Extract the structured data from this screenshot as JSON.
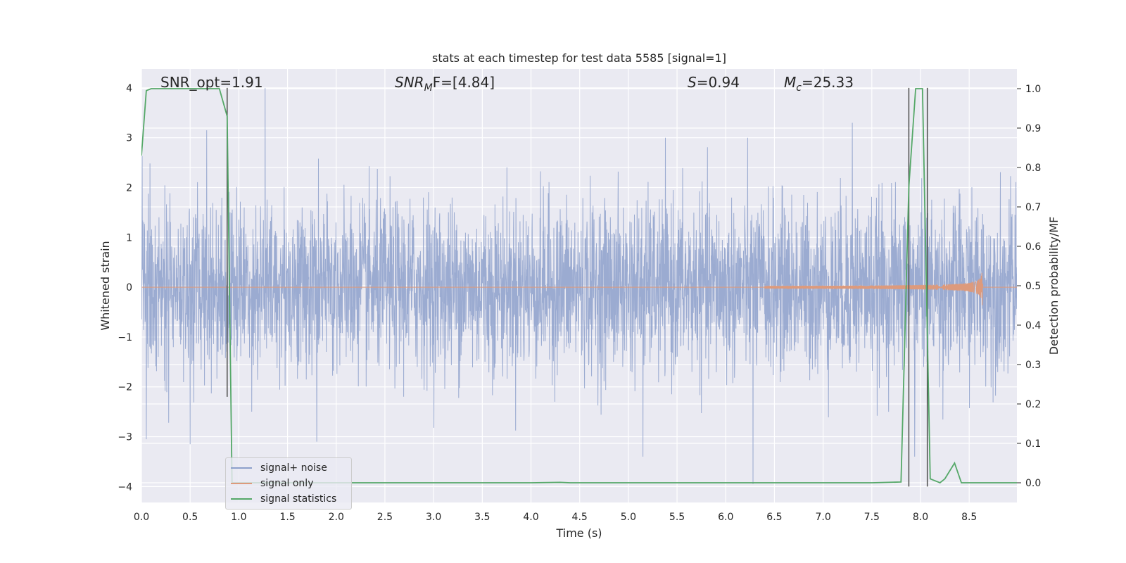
{
  "chart_data": {
    "type": "line",
    "title": "stats at each timestep for test data 5585 [signal=1]",
    "xlabel": "Time (s)",
    "ylabel_left": "Whitened strain",
    "ylabel_right": "Detection probability/MF",
    "xlim": [
      0.0,
      8.99
    ],
    "ylim_left": [
      -4.32,
      4.38
    ],
    "ylim_right": [
      -0.05,
      1.05
    ],
    "x_ticks": [
      0.0,
      0.5,
      1.0,
      1.5,
      2.0,
      2.5,
      3.0,
      3.5,
      4.0,
      4.5,
      5.0,
      5.5,
      6.0,
      6.5,
      7.0,
      7.5,
      8.0,
      8.5
    ],
    "x_tick_labels": [
      "0.0",
      "0.5",
      "1.0",
      "1.5",
      "2.0",
      "2.5",
      "3.0",
      "3.5",
      "4.0",
      "4.5",
      "5.0",
      "5.5",
      "6.0",
      "6.5",
      "7.0",
      "7.5",
      "8.0",
      "8.5"
    ],
    "y_left_ticks": [
      4,
      3,
      2,
      1,
      0,
      -1,
      -2,
      -3,
      -4
    ],
    "y_left_tick_labels": [
      "4",
      "3",
      "2",
      "1",
      "0",
      "−1",
      "−2",
      "−3",
      "−4"
    ],
    "y_right_ticks": [
      1.0,
      0.9,
      0.8,
      0.7,
      0.6,
      0.5,
      0.4,
      0.3,
      0.2,
      0.1,
      0.0
    ],
    "y_right_tick_labels": [
      "1.0",
      "0.9",
      "0.8",
      "0.7",
      "0.6",
      "0.5",
      "0.4",
      "0.3",
      "0.2",
      "0.1",
      "0.0"
    ],
    "grid": true,
    "legend_position": "lower-left",
    "annotations": {
      "snr_opt": "SNR_opt=1.91",
      "snr_mf_prefix": "SNR",
      "snr_mf_sub": "M",
      "snr_mf_rest": "F=[4.84]",
      "s_prefix": "S",
      "s_rest": "=0.94",
      "mc_prefix": "M",
      "mc_sub": "c",
      "mc_rest": "=25.33"
    },
    "vertical_lines": [
      {
        "x": 0.88,
        "y_top": 4.0,
        "y_bottom": -2.2
      },
      {
        "x": 7.88,
        "y_top": 4.0,
        "y_bottom": -4.0
      },
      {
        "x": 8.07,
        "y_top": 4.0,
        "y_bottom": -4.0
      }
    ],
    "series": [
      {
        "name": "signal+ noise",
        "color": "#8da0cb",
        "kind": "noise",
        "sample_rate_hz": 400,
        "x_range": [
          0.0,
          8.99
        ],
        "sigma": 0.85,
        "spikes": [
          {
            "x": 1.27,
            "y": 4.0
          },
          {
            "x": 0.67,
            "y": 3.15
          },
          {
            "x": 6.28,
            "y": -3.95
          },
          {
            "x": 7.94,
            "y": -3.4
          },
          {
            "x": 7.3,
            "y": 3.3
          },
          {
            "x": 0.05,
            "y": -3.05
          },
          {
            "x": 0.5,
            "y": -3.15
          },
          {
            "x": 5.15,
            "y": -3.4
          },
          {
            "x": 1.8,
            "y": -3.1
          }
        ]
      },
      {
        "name": "signal only",
        "color": "#dd9a7c",
        "kind": "chirp",
        "x_range": [
          6.4,
          8.64
        ],
        "peak_amplitude": 0.45
      },
      {
        "name": "signal statistics",
        "color": "#55a868",
        "axis": "right",
        "x": [
          0.0,
          0.05,
          0.1,
          0.2,
          0.4,
          0.6,
          0.8,
          0.88,
          0.93,
          1.0,
          2.0,
          3.0,
          4.0,
          4.3,
          4.4,
          5.0,
          6.0,
          7.0,
          7.5,
          7.8,
          7.88,
          7.95,
          8.02,
          8.1,
          8.2,
          8.25,
          8.35,
          8.42,
          8.5,
          9.0
        ],
        "y": [
          0.83,
          0.995,
          1.0,
          1.0,
          1.0,
          1.0,
          1.0,
          0.93,
          0.0,
          0.0,
          0.0,
          0.0,
          0.0,
          0.001,
          0.0,
          0.0,
          0.0,
          0.0,
          0.0,
          0.002,
          0.75,
          1.0,
          1.0,
          0.01,
          0.0,
          0.01,
          0.05,
          0.0,
          0.0,
          0.0
        ]
      }
    ]
  }
}
